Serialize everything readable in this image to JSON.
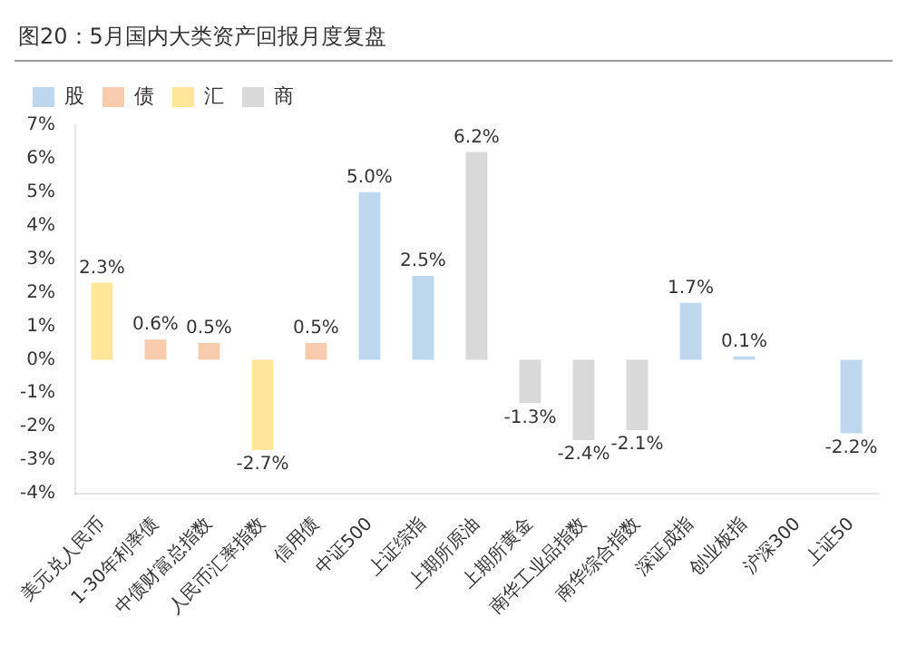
{
  "chart_data": {
    "type": "bar",
    "title": "图20：5月国内大类资产回报月度复盘",
    "categories": [
      "美元兑人民币",
      "1-30年利率债",
      "中债财富总指数",
      "人民币汇率指数",
      "信用债",
      "中证500",
      "上证综指",
      "上期所原油",
      "上期所黄金",
      "南华工业品指数",
      "南华综合指数",
      "深证成指",
      "创业板指",
      "沪深300",
      "上证50"
    ],
    "series": [
      {
        "name": "股",
        "color": "#bdd7ee",
        "values": [
          null,
          null,
          null,
          null,
          null,
          5.0,
          2.5,
          null,
          null,
          null,
          null,
          1.7,
          0.1,
          null,
          -2.2
        ],
        "value_labels": [
          null,
          null,
          null,
          null,
          null,
          "5.0%",
          "2.5%",
          null,
          null,
          null,
          null,
          "1.7%",
          "0.1%",
          null,
          "-2.2%"
        ]
      },
      {
        "name": "债",
        "color": "#f8cbad",
        "values": [
          null,
          0.6,
          0.5,
          null,
          0.5,
          null,
          null,
          null,
          null,
          null,
          null,
          null,
          null,
          null,
          null
        ],
        "value_labels": [
          null,
          "0.6%",
          "0.5%",
          null,
          "0.5%",
          null,
          null,
          null,
          null,
          null,
          null,
          null,
          null,
          null,
          null
        ]
      },
      {
        "name": "汇",
        "color": "#ffe699",
        "values": [
          2.3,
          null,
          null,
          -2.7,
          null,
          null,
          null,
          null,
          null,
          null,
          null,
          null,
          null,
          null,
          null
        ],
        "value_labels": [
          "2.3%",
          null,
          null,
          "-2.7%",
          null,
          null,
          null,
          null,
          null,
          null,
          null,
          null,
          null,
          null,
          null
        ]
      },
      {
        "name": "商",
        "color": "#d9d9d9",
        "values": [
          null,
          null,
          null,
          null,
          null,
          null,
          null,
          6.2,
          -1.3,
          -2.4,
          -2.1,
          null,
          null,
          null,
          null
        ],
        "value_labels": [
          null,
          null,
          null,
          null,
          null,
          null,
          null,
          "6.2%",
          "-1.3%",
          "-2.4%",
          "-2.1%",
          null,
          null,
          null,
          null
        ]
      }
    ],
    "ylim": [
      -4,
      7
    ],
    "yticks": [
      {
        "value": -4,
        "label": "-4%"
      },
      {
        "value": -3,
        "label": "-3%"
      },
      {
        "value": -2,
        "label": "-2%"
      },
      {
        "value": -1,
        "label": "-1%"
      },
      {
        "value": 0,
        "label": "0%"
      },
      {
        "value": 1,
        "label": "1%"
      },
      {
        "value": 2,
        "label": "2%"
      },
      {
        "value": 3,
        "label": "3%"
      },
      {
        "value": 4,
        "label": "4%"
      },
      {
        "value": 5,
        "label": "5%"
      },
      {
        "value": 6,
        "label": "6%"
      },
      {
        "value": 7,
        "label": "7%"
      }
    ],
    "grid": false,
    "legend": "top left"
  }
}
